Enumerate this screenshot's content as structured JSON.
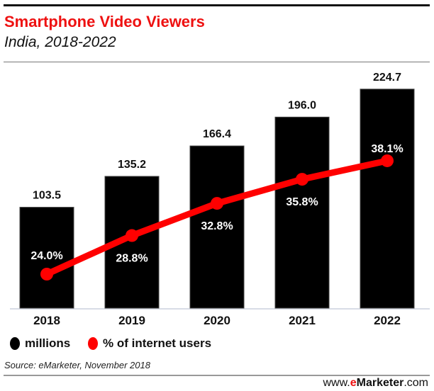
{
  "header": {
    "title": "Smartphone Video Viewers",
    "subtitle": "India, 2018-2022"
  },
  "footer": {
    "source": "Source: eMarketer, November 2018",
    "brand_prefix": "www.",
    "brand_e": "e",
    "brand_name": "Marketer",
    ".com": ".com",
    "brand_suffix": ".com"
  },
  "colors": {
    "title": "#ee1111",
    "bars": "#000000",
    "line": "#ff0000"
  },
  "chart_data": {
    "type": "bar+line",
    "title": "Smartphone Video Viewers",
    "subtitle": "India, 2018-2022",
    "categories": [
      "2018",
      "2019",
      "2020",
      "2021",
      "2022"
    ],
    "series": [
      {
        "name": "millions",
        "type": "bar",
        "values": [
          103.5,
          135.2,
          166.4,
          196.0,
          224.7
        ],
        "labels": [
          "103.5",
          "135.2",
          "166.4",
          "196.0",
          "224.7"
        ]
      },
      {
        "name": "% of internet users",
        "type": "line",
        "values": [
          24.0,
          28.8,
          32.8,
          35.8,
          38.1
        ],
        "labels": [
          "24.0%",
          "28.8%",
          "32.8%",
          "35.8%",
          "38.1%"
        ]
      }
    ],
    "legend": {
      "position": "bottom-left",
      "items": [
        "millions",
        "% of internet users"
      ]
    },
    "grid": false
  }
}
